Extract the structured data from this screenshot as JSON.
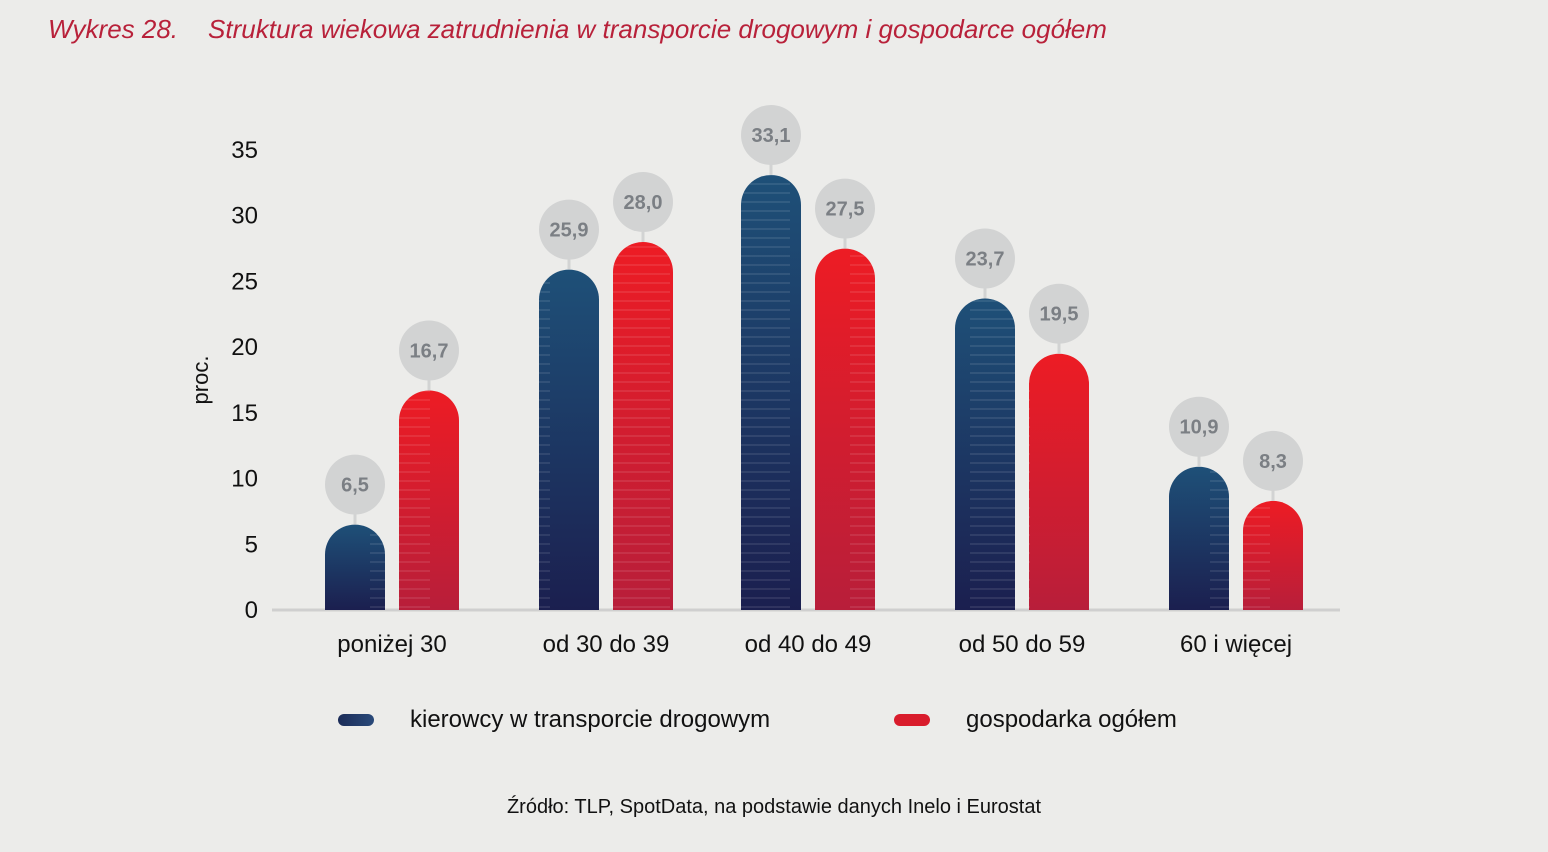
{
  "title": {
    "prefix": "Wykres 28.",
    "text": "Struktura wiekowa zatrudnienia w transporcie drogowym i gospodarce ogółem"
  },
  "chart_data": {
    "type": "bar",
    "title": "Struktura wiekowa zatrudnienia w transporcie drogowym i gospodarce ogółem",
    "xlabel": "",
    "ylabel": "proc.",
    "ylim": [
      0,
      35
    ],
    "yticks": [
      0,
      5,
      10,
      15,
      20,
      25,
      30,
      35
    ],
    "grid": false,
    "legend_position": "bottom",
    "categories": [
      "poniżej 30",
      "od 30 do 39",
      "od 40 do 49",
      "od 50 do 59",
      "60 i więcej"
    ],
    "series": [
      {
        "name": "kierowcy w transporcie drogowym",
        "values": [
          6.5,
          25.9,
          33.1,
          23.7,
          10.9
        ],
        "labels": [
          "6,5",
          "25,9",
          "33,1",
          "23,7",
          "10,9"
        ],
        "color_top": "#1e5078",
        "color_bottom": "#1b1f4f"
      },
      {
        "name": "gospodarka ogółem",
        "values": [
          16.7,
          28.0,
          27.5,
          19.5,
          8.3
        ],
        "labels": [
          "16,7",
          "28,0",
          "27,5",
          "19,5",
          "8,3"
        ],
        "color_top": "#ed1c24",
        "color_bottom": "#b81e3a"
      }
    ]
  },
  "legend": {
    "items": [
      {
        "label": "kierowcy w transporcie drogowym",
        "color": "#1e3a68"
      },
      {
        "label": "gospodarka ogółem",
        "color": "#d91c2c"
      }
    ]
  },
  "source": "Źródło: TLP, SpotData, na podstawie danych Inelo i Eurostat"
}
